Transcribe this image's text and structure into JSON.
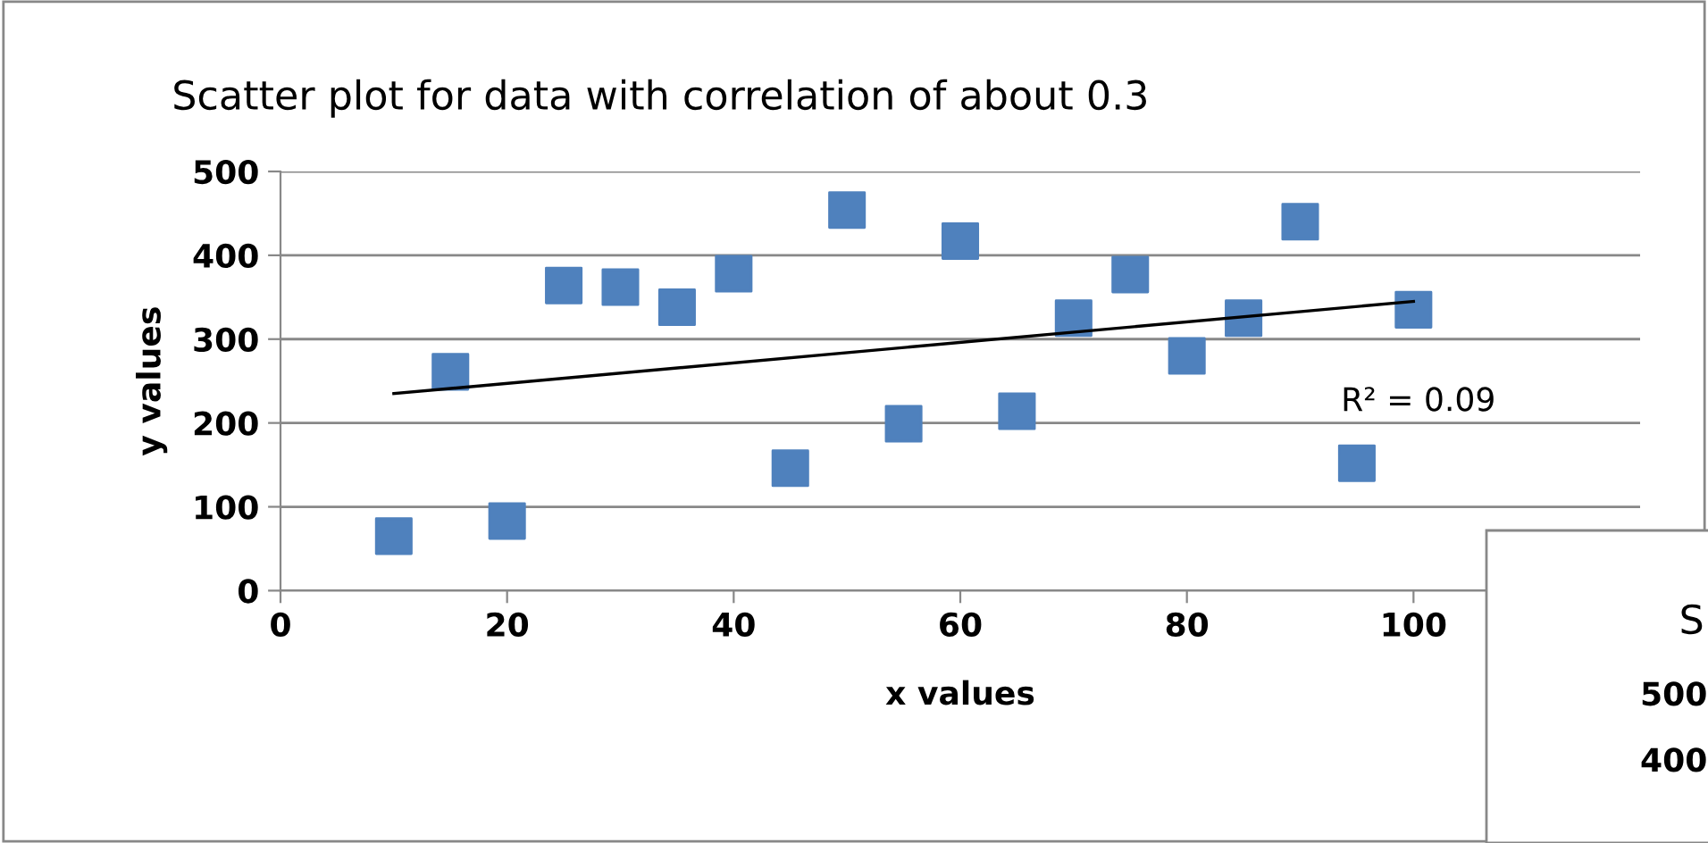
{
  "chart_data": [
    {
      "type": "scatter",
      "title": "Scatter plot for data with correlation of about 0.3",
      "xlabel": "x values",
      "ylabel": "y values",
      "xlim": [
        0,
        120
      ],
      "xticks": [
        0,
        20,
        40,
        60,
        80,
        100
      ],
      "ylim": [
        0,
        500
      ],
      "yticks": [
        0,
        100,
        200,
        300,
        400,
        500
      ],
      "grid": "y",
      "marker": "square",
      "annotations": [
        "R² = 0.09"
      ],
      "series": [
        {
          "color": "#4f81bd",
          "x": [
            10,
            15,
            20,
            25,
            30,
            35,
            40,
            45,
            50,
            55,
            60,
            65,
            70,
            75,
            80,
            85,
            90,
            95,
            100
          ],
          "values": [
            65,
            261,
            83,
            364,
            362,
            338,
            378,
            146,
            454,
            199,
            417,
            214,
            325,
            377,
            280,
            325,
            440,
            152,
            335
          ]
        },
        {
          "type": "line",
          "color": "#000000",
          "marker": "none",
          "line_style": "solid",
          "x": [
            10,
            100
          ],
          "values": [
            235,
            345
          ]
        }
      ]
    },
    {
      "type": "other",
      "title": "S",
      "annotations": [
        "500",
        "400"
      ]
    }
  ]
}
